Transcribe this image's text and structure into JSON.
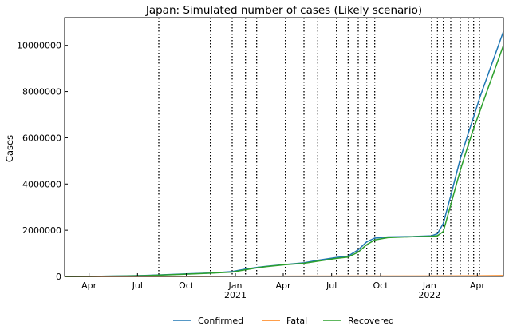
{
  "chart_data": {
    "type": "line",
    "title": "Japan: Simulated number of cases (Likely scenario)",
    "ylabel": "Cases",
    "xlabel": "",
    "x_range": [
      "2020-02-15",
      "2022-05-20"
    ],
    "ylim": [
      0,
      11200000
    ],
    "y_ticks": [
      0,
      2000000,
      4000000,
      6000000,
      8000000,
      10000000
    ],
    "x_ticks": [
      {
        "date": "2020-04-01",
        "label": "Apr",
        "sub": ""
      },
      {
        "date": "2020-07-01",
        "label": "Jul",
        "sub": ""
      },
      {
        "date": "2020-10-01",
        "label": "Oct",
        "sub": ""
      },
      {
        "date": "2021-01-01",
        "label": "Jan",
        "sub": "2021"
      },
      {
        "date": "2021-04-01",
        "label": "Apr",
        "sub": ""
      },
      {
        "date": "2021-07-01",
        "label": "Jul",
        "sub": ""
      },
      {
        "date": "2021-10-01",
        "label": "Oct",
        "sub": ""
      },
      {
        "date": "2022-01-01",
        "label": "Jan",
        "sub": "2022"
      },
      {
        "date": "2022-04-01",
        "label": "Apr",
        "sub": ""
      }
    ],
    "vlines": [
      "2020-08-10",
      "2020-11-15",
      "2020-12-26",
      "2021-01-20",
      "2021-02-10",
      "2021-04-05",
      "2021-05-10",
      "2021-06-05",
      "2021-07-10",
      "2021-08-01",
      "2021-08-20",
      "2021-09-05",
      "2021-09-20",
      "2022-01-05",
      "2022-01-16",
      "2022-01-27",
      "2022-02-10",
      "2022-02-28",
      "2022-03-15",
      "2022-03-25",
      "2022-04-05"
    ],
    "grid": false,
    "legend_position": "bottom-center",
    "series": [
      {
        "name": "Confirmed",
        "color": "#1f77b4",
        "points": [
          [
            "2020-02-15",
            0
          ],
          [
            "2020-04-01",
            5000
          ],
          [
            "2020-06-01",
            20000
          ],
          [
            "2020-07-15",
            40000
          ],
          [
            "2020-08-15",
            70000
          ],
          [
            "2020-10-01",
            110000
          ],
          [
            "2020-11-15",
            150000
          ],
          [
            "2020-12-26",
            210000
          ],
          [
            "2021-01-20",
            320000
          ],
          [
            "2021-02-10",
            390000
          ],
          [
            "2021-03-01",
            440000
          ],
          [
            "2021-04-05",
            520000
          ],
          [
            "2021-05-10",
            590000
          ],
          [
            "2021-06-05",
            700000
          ],
          [
            "2021-07-10",
            820000
          ],
          [
            "2021-08-01",
            880000
          ],
          [
            "2021-08-20",
            1150000
          ],
          [
            "2021-09-05",
            1500000
          ],
          [
            "2021-09-20",
            1660000
          ],
          [
            "2021-10-15",
            1710000
          ],
          [
            "2021-12-01",
            1730000
          ],
          [
            "2022-01-05",
            1760000
          ],
          [
            "2022-01-16",
            1850000
          ],
          [
            "2022-01-27",
            2300000
          ],
          [
            "2022-02-10",
            3500000
          ],
          [
            "2022-02-28",
            5100000
          ],
          [
            "2022-03-15",
            6200000
          ],
          [
            "2022-03-25",
            6900000
          ],
          [
            "2022-04-05",
            7700000
          ],
          [
            "2022-05-20",
            10600000
          ]
        ]
      },
      {
        "name": "Fatal",
        "color": "#ff7f0e",
        "points": [
          [
            "2020-02-15",
            0
          ],
          [
            "2020-10-01",
            2000
          ],
          [
            "2021-01-20",
            6000
          ],
          [
            "2021-06-05",
            14000
          ],
          [
            "2021-12-01",
            18000
          ],
          [
            "2022-02-10",
            20000
          ],
          [
            "2022-04-05",
            28000
          ],
          [
            "2022-05-20",
            33000
          ]
        ]
      },
      {
        "name": "Recovered",
        "color": "#2ca02c",
        "points": [
          [
            "2020-02-15",
            0
          ],
          [
            "2020-04-01",
            3000
          ],
          [
            "2020-06-01",
            18000
          ],
          [
            "2020-07-15",
            35000
          ],
          [
            "2020-08-15",
            60000
          ],
          [
            "2020-10-01",
            100000
          ],
          [
            "2020-11-15",
            140000
          ],
          [
            "2020-12-26",
            190000
          ],
          [
            "2021-01-20",
            290000
          ],
          [
            "2021-02-10",
            370000
          ],
          [
            "2021-03-01",
            430000
          ],
          [
            "2021-04-05",
            510000
          ],
          [
            "2021-05-10",
            570000
          ],
          [
            "2021-06-05",
            660000
          ],
          [
            "2021-07-10",
            780000
          ],
          [
            "2021-08-01",
            840000
          ],
          [
            "2021-08-20",
            1050000
          ],
          [
            "2021-09-05",
            1380000
          ],
          [
            "2021-09-20",
            1580000
          ],
          [
            "2021-10-15",
            1680000
          ],
          [
            "2021-12-01",
            1720000
          ],
          [
            "2022-01-05",
            1740000
          ],
          [
            "2022-01-16",
            1760000
          ],
          [
            "2022-01-27",
            1950000
          ],
          [
            "2022-02-10",
            3100000
          ],
          [
            "2022-02-28",
            4600000
          ],
          [
            "2022-03-15",
            5700000
          ],
          [
            "2022-03-25",
            6400000
          ],
          [
            "2022-04-05",
            7100000
          ],
          [
            "2022-05-20",
            10000000
          ]
        ]
      }
    ]
  }
}
